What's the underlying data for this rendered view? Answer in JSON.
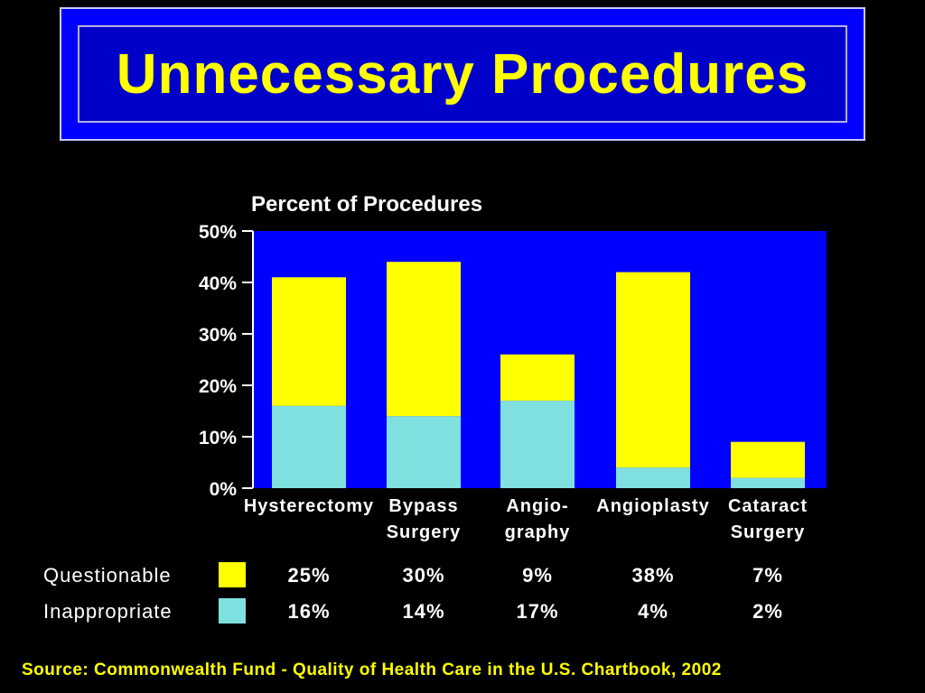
{
  "title": "Unnecessary Procedures",
  "source": "Source: Commonwealth Fund - Quality of Health Care in the U.S. Chartbook, 2002",
  "colors": {
    "background": "#000000",
    "plot_background": "#0000ff",
    "title_box_outer": "#0000ff",
    "title_box_inner": "#0000c8",
    "title_text": "#ffff00",
    "questionable": "#ffff00",
    "inappropriate": "#80e0e0"
  },
  "chart_data": {
    "type": "bar",
    "stacked": true,
    "title": "Percent of Procedures",
    "categories": [
      [
        "Hysterectomy"
      ],
      [
        "Bypass",
        "Surgery"
      ],
      [
        "Angio-",
        "graphy"
      ],
      [
        "Angioplasty"
      ],
      [
        "Cataract",
        "Surgery"
      ]
    ],
    "series": [
      {
        "name": "Inappropriate",
        "values": [
          16,
          14,
          17,
          4,
          2
        ],
        "labels": [
          "16%",
          "14%",
          "17%",
          "4%",
          "2%"
        ]
      },
      {
        "name": "Questionable",
        "values": [
          25,
          30,
          9,
          38,
          7
        ],
        "labels": [
          "25%",
          "30%",
          "9%",
          "38%",
          "7%"
        ]
      }
    ],
    "yticks": [
      "0%",
      "10%",
      "20%",
      "30%",
      "40%",
      "50%"
    ],
    "ylim": [
      0,
      50
    ],
    "legend_table_order": [
      "Questionable",
      "Inappropriate"
    ],
    "grid": false
  }
}
